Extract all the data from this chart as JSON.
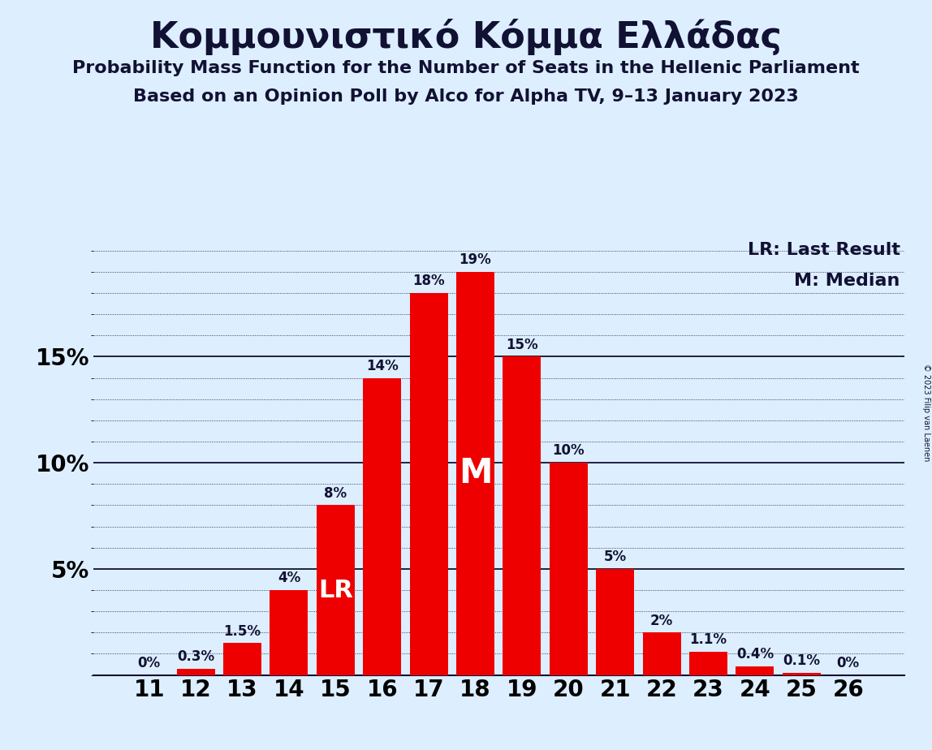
{
  "title": "Κομμουνιστικό Κόμμα Ελλάδας",
  "subtitle1": "Probability Mass Function for the Number of Seats in the Hellenic Parliament",
  "subtitle2": "Based on an Opinion Poll by Alco for Alpha TV, 9–13 January 2023",
  "copyright": "© 2023 Filip van Laenen",
  "seats": [
    11,
    12,
    13,
    14,
    15,
    16,
    17,
    18,
    19,
    20,
    21,
    22,
    23,
    24,
    25,
    26
  ],
  "probabilities": [
    0.0,
    0.3,
    1.5,
    4.0,
    8.0,
    14.0,
    18.0,
    19.0,
    15.0,
    10.0,
    5.0,
    2.0,
    1.1,
    0.4,
    0.1,
    0.0
  ],
  "labels": [
    "0%",
    "0.3%",
    "1.5%",
    "4%",
    "8%",
    "14%",
    "18%",
    "19%",
    "15%",
    "10%",
    "5%",
    "2%",
    "1.1%",
    "0.4%",
    "0.1%",
    "0%"
  ],
  "bar_color": "#ee0000",
  "background_color": "#ddeeff",
  "text_color": "#111133",
  "lr_seat": 15,
  "median_seat": 18,
  "yticks": [
    5,
    10,
    15
  ],
  "ylim": [
    0,
    20.5
  ],
  "legend_lr": "LR: Last Result",
  "legend_m": "M: Median"
}
